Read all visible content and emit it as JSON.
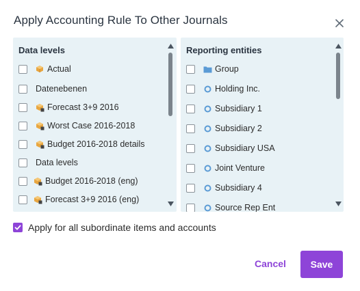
{
  "dialog": {
    "title": "Apply Accounting Rule To Other Journals",
    "close_icon": "close-icon"
  },
  "left_panel": {
    "header": "Data levels",
    "items": [
      {
        "label": "Actual",
        "icon": "cube-icon",
        "checked": false
      },
      {
        "label": "Datenebenen",
        "icon": null,
        "checked": false
      },
      {
        "label": "Forecast 3+9 2016",
        "icon": "cube-lock-icon",
        "checked": false
      },
      {
        "label": "Worst Case 2016-2018",
        "icon": "cube-lock-icon",
        "checked": false
      },
      {
        "label": "Budget 2016-2018 details",
        "icon": "cube-lock-icon",
        "checked": false
      },
      {
        "label": "Data levels",
        "icon": null,
        "checked": false
      },
      {
        "label": "Budget 2016-2018 (eng)",
        "icon": "cube-lock-icon",
        "checked": false
      },
      {
        "label": "Forecast 3+9 2016 (eng)",
        "icon": "cube-lock-icon",
        "checked": false
      }
    ]
  },
  "right_panel": {
    "header": "Reporting entities",
    "items": [
      {
        "label": "Group",
        "icon": "folder-icon",
        "checked": false
      },
      {
        "label": "Holding Inc.",
        "icon": "entity-circle-icon",
        "checked": false
      },
      {
        "label": "Subsidiary 1",
        "icon": "entity-circle-icon",
        "checked": false
      },
      {
        "label": "Subsidiary 2",
        "icon": "entity-circle-icon",
        "checked": false
      },
      {
        "label": "Subsidiary USA",
        "icon": "entity-circle-icon",
        "checked": false
      },
      {
        "label": "Joint Venture",
        "icon": "entity-circle-icon",
        "checked": false
      },
      {
        "label": "Subsidiary 4",
        "icon": "entity-circle-icon",
        "checked": false
      },
      {
        "label": "Source Rep Ent",
        "icon": "entity-circle-icon",
        "checked": false
      }
    ]
  },
  "options": {
    "apply_subordinate_label": "Apply for all subordinate items and accounts",
    "apply_subordinate_checked": true
  },
  "actions": {
    "cancel_label": "Cancel",
    "save_label": "Save"
  },
  "colors": {
    "accent": "#8e44d8",
    "panel_bg": "#e8f2f6",
    "entity_icon": "#5b9bd5",
    "cube_icon": "#e8a640"
  }
}
